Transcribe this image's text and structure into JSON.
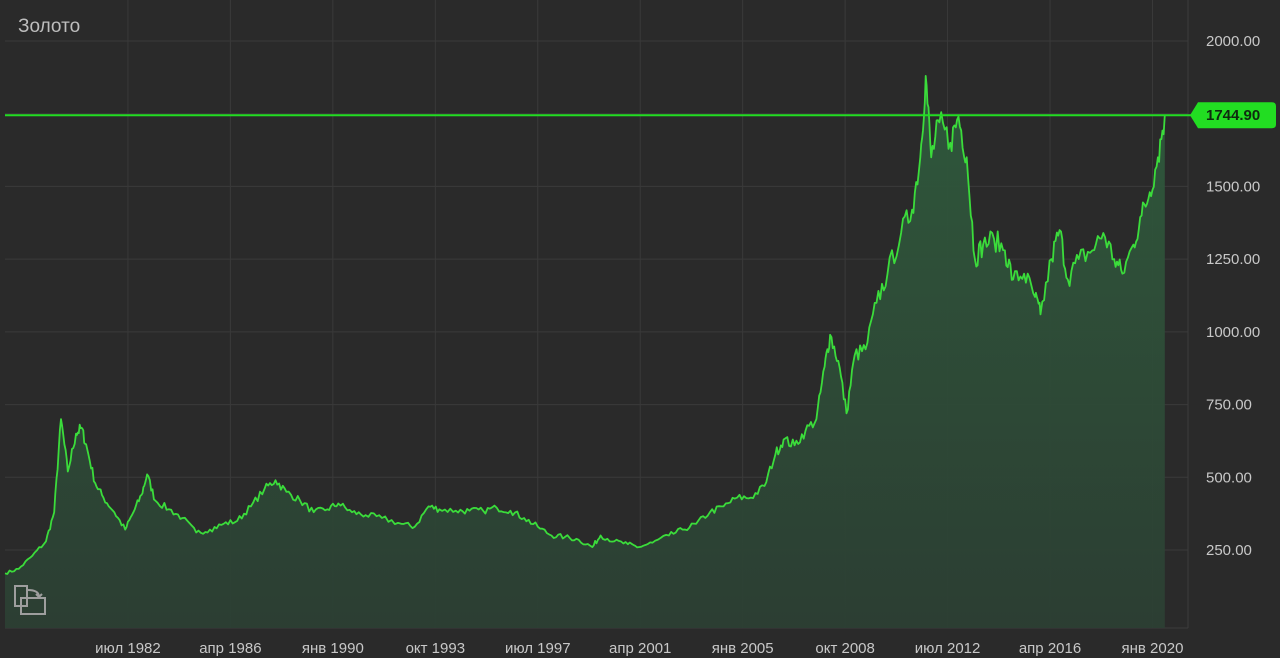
{
  "title": "Золото",
  "current_price_label": "1744.90",
  "colors": {
    "background": "#2a2a2a",
    "grid": "#3a3a3a",
    "line": "#3bdc3b",
    "area": "#2f4a37",
    "price_line": "#22dd22",
    "badge": "#22dd22"
  },
  "icons": {
    "fit": "fit-to-screen-icon"
  },
  "chart_data": {
    "type": "area",
    "title": "Золото",
    "xlabel": "",
    "ylabel": "",
    "ylim": [
      0,
      2100
    ],
    "y_ticks": [
      "250.00",
      "500.00",
      "750.00",
      "1000.00",
      "1250.00",
      "1500.00",
      "2000.00"
    ],
    "x_ticks": [
      "июл 1982",
      "апр 1986",
      "янв 1990",
      "окт 1993",
      "июл 1997",
      "апр 2001",
      "янв 2005",
      "окт 2008",
      "июл 2012",
      "апр 2016",
      "янв 2020"
    ],
    "grid": true,
    "current_value": 1744.9,
    "series": [
      {
        "points": [
          [
            1978.0,
            170
          ],
          [
            1978.5,
            185
          ],
          [
            1979.0,
            230
          ],
          [
            1979.5,
            280
          ],
          [
            1979.8,
            380
          ],
          [
            1980.05,
            700
          ],
          [
            1980.3,
            520
          ],
          [
            1980.6,
            650
          ],
          [
            1980.8,
            670
          ],
          [
            1981.0,
            600
          ],
          [
            1981.3,
            480
          ],
          [
            1981.6,
            430
          ],
          [
            1982.0,
            380
          ],
          [
            1982.4,
            320
          ],
          [
            1982.7,
            380
          ],
          [
            1983.0,
            440
          ],
          [
            1983.2,
            510
          ],
          [
            1983.5,
            420
          ],
          [
            1984.0,
            390
          ],
          [
            1984.5,
            360
          ],
          [
            1985.0,
            310
          ],
          [
            1985.5,
            320
          ],
          [
            1986.0,
            340
          ],
          [
            1986.5,
            350
          ],
          [
            1987.0,
            400
          ],
          [
            1987.5,
            460
          ],
          [
            1987.9,
            490
          ],
          [
            1988.3,
            450
          ],
          [
            1988.8,
            420
          ],
          [
            1989.3,
            380
          ],
          [
            1989.8,
            390
          ],
          [
            1990.2,
            410
          ],
          [
            1990.7,
            380
          ],
          [
            1991.2,
            370
          ],
          [
            1991.8,
            360
          ],
          [
            1992.5,
            340
          ],
          [
            1993.0,
            330
          ],
          [
            1993.5,
            400
          ],
          [
            1993.9,
            390
          ],
          [
            1994.5,
            385
          ],
          [
            1995.0,
            385
          ],
          [
            1995.5,
            385
          ],
          [
            1996.0,
            395
          ],
          [
            1996.5,
            385
          ],
          [
            1997.0,
            360
          ],
          [
            1997.5,
            330
          ],
          [
            1998.0,
            300
          ],
          [
            1998.5,
            295
          ],
          [
            1999.0,
            285
          ],
          [
            1999.5,
            260
          ],
          [
            1999.8,
            300
          ],
          [
            2000.3,
            280
          ],
          [
            2000.8,
            270
          ],
          [
            2001.2,
            260
          ],
          [
            2001.7,
            275
          ],
          [
            2002.3,
            300
          ],
          [
            2002.8,
            320
          ],
          [
            2003.3,
            340
          ],
          [
            2003.8,
            380
          ],
          [
            2004.3,
            400
          ],
          [
            2004.8,
            430
          ],
          [
            2005.3,
            430
          ],
          [
            2005.8,
            470
          ],
          [
            2006.2,
            580
          ],
          [
            2006.5,
            630
          ],
          [
            2006.9,
            610
          ],
          [
            2007.3,
            660
          ],
          [
            2007.7,
            700
          ],
          [
            2008.0,
            880
          ],
          [
            2008.2,
            990
          ],
          [
            2008.5,
            900
          ],
          [
            2008.8,
            720
          ],
          [
            2009.1,
            920
          ],
          [
            2009.5,
            940
          ],
          [
            2009.9,
            1100
          ],
          [
            2010.3,
            1200
          ],
          [
            2010.8,
            1340
          ],
          [
            2011.2,
            1420
          ],
          [
            2011.5,
            1600
          ],
          [
            2011.7,
            1880
          ],
          [
            2011.9,
            1600
          ],
          [
            2012.2,
            1720
          ],
          [
            2012.6,
            1650
          ],
          [
            2012.9,
            1740
          ],
          [
            2013.2,
            1600
          ],
          [
            2013.5,
            1250
          ],
          [
            2013.8,
            1300
          ],
          [
            2014.2,
            1320
          ],
          [
            2014.6,
            1280
          ],
          [
            2014.9,
            1180
          ],
          [
            2015.3,
            1200
          ],
          [
            2015.7,
            1120
          ],
          [
            2015.9,
            1060
          ],
          [
            2016.3,
            1250
          ],
          [
            2016.6,
            1350
          ],
          [
            2016.9,
            1180
          ],
          [
            2017.3,
            1250
          ],
          [
            2017.8,
            1280
          ],
          [
            2018.2,
            1340
          ],
          [
            2018.6,
            1250
          ],
          [
            2018.9,
            1200
          ],
          [
            2019.3,
            1300
          ],
          [
            2019.6,
            1400
          ],
          [
            2019.9,
            1480
          ],
          [
            2020.2,
            1600
          ],
          [
            2020.45,
            1744.9
          ]
        ]
      }
    ]
  }
}
